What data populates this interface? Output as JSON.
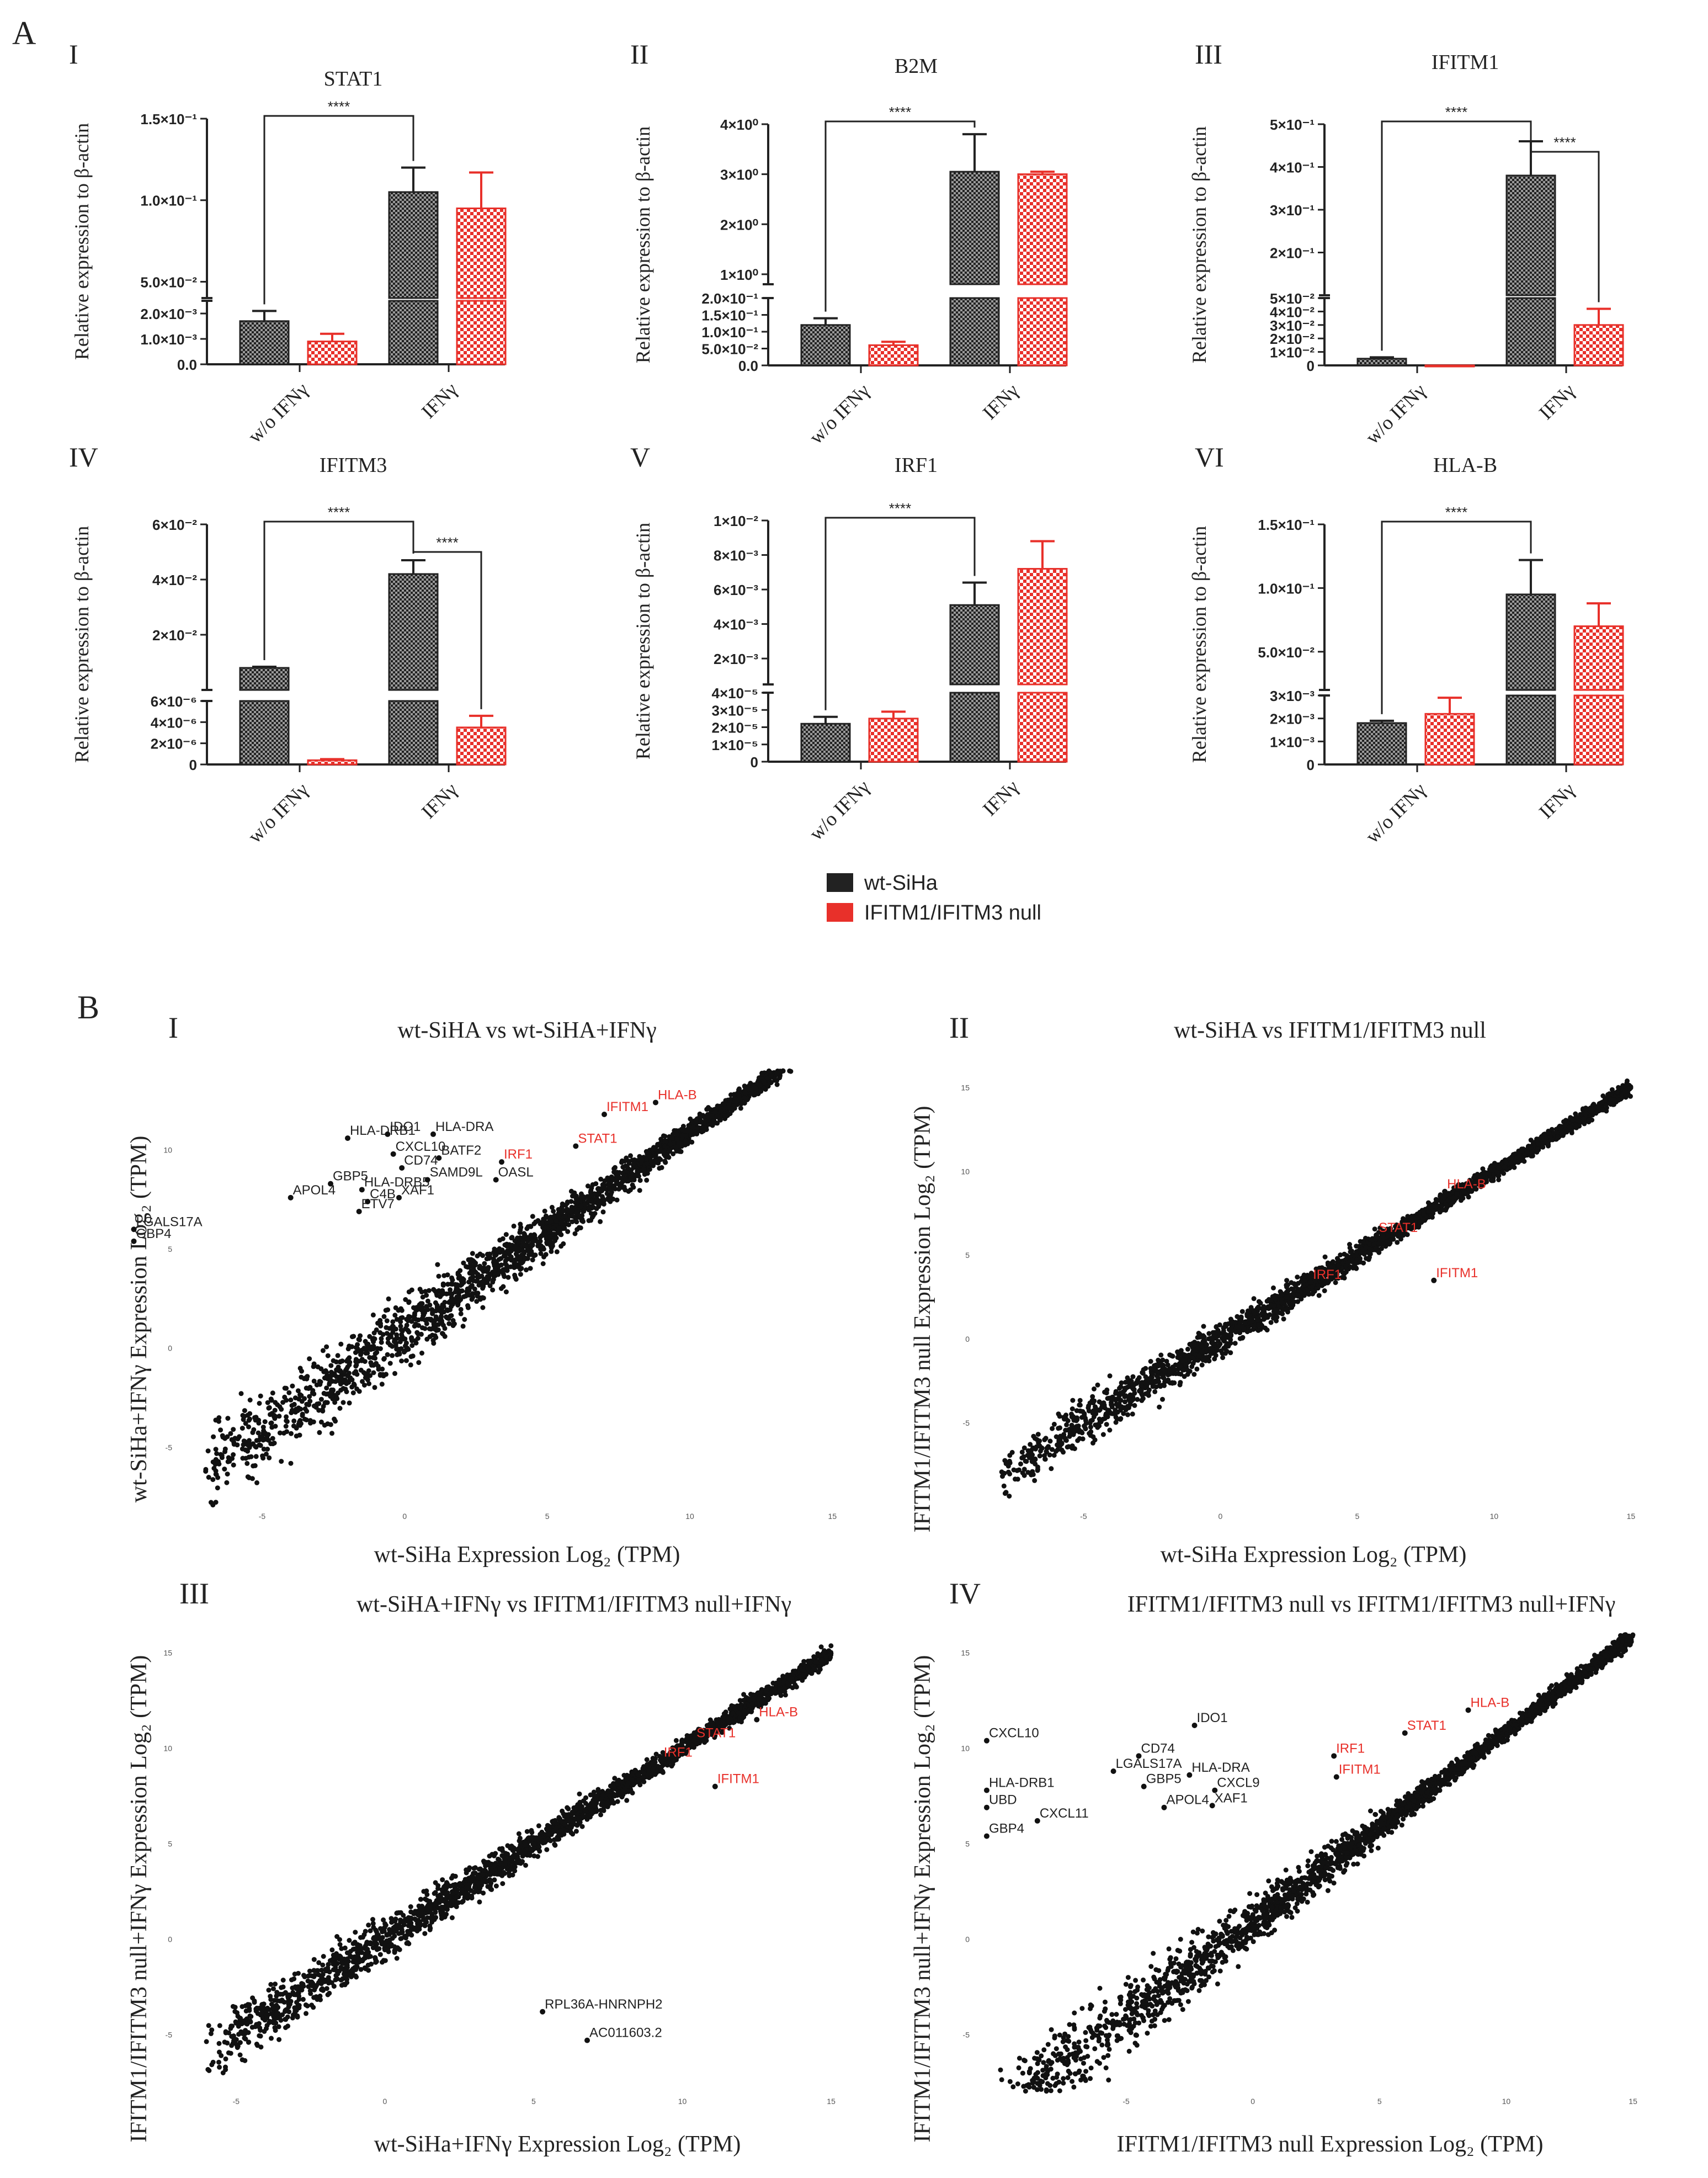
{
  "figure": {
    "panel_a_label": "A",
    "panel_b_label": "B",
    "legend": [
      {
        "label": "wt-SiHa",
        "color": "#222222"
      },
      {
        "label": "IFITM1/IFITM3 null",
        "color": "#e8302a"
      }
    ],
    "colors": {
      "wt": "#222222",
      "null": "#e8302a",
      "highlight": "#e8302a",
      "text": "#222222"
    }
  },
  "chart_data": [
    {
      "type": "bar",
      "roman": "I",
      "title": "STAT1",
      "ylabel": "Relative expression to β-actin",
      "categories": [
        "w/o IFNγ",
        "IFNγ"
      ],
      "lower": {
        "ylim": [
          0,
          0.0025
        ],
        "ticks": [
          0,
          0.001,
          0.002
        ],
        "tick_labels": [
          "0.0",
          "1.0×10⁻³",
          "2.0×10⁻³"
        ]
      },
      "upper": {
        "ylim": [
          0.04,
          0.15
        ],
        "ticks": [
          0.05,
          0.1,
          0.15
        ],
        "tick_labels": [
          "5.0×10⁻²",
          "1.0×10⁻¹",
          "1.5×10⁻¹"
        ]
      },
      "series": [
        {
          "name": "wt-SiHa",
          "values": [
            0.0017,
            0.105
          ],
          "errors": [
            0.0004,
            0.015
          ]
        },
        {
          "name": "IFITM1/IFITM3 null",
          "values": [
            0.0009,
            0.095
          ],
          "errors": [
            0.0003,
            0.022
          ]
        }
      ],
      "significance": [
        {
          "from": [
            0,
            0
          ],
          "to": [
            1,
            0
          ],
          "label": "****"
        }
      ]
    },
    {
      "type": "bar",
      "roman": "II",
      "title": "B2M",
      "ylabel": "Relative expression to β-actin",
      "categories": [
        "w/o IFNγ",
        "IFNγ"
      ],
      "lower": {
        "ylim": [
          0,
          0.2
        ],
        "ticks": [
          0,
          0.05,
          0.1,
          0.15,
          0.2
        ],
        "tick_labels": [
          "0.0",
          "5.0×10⁻²",
          "1.0×10⁻¹",
          "1.5×10⁻¹",
          "2.0×10⁻¹"
        ]
      },
      "upper": {
        "ylim": [
          0.8,
          4
        ],
        "ticks": [
          1,
          2,
          3,
          4
        ],
        "tick_labels": [
          "1×10⁰",
          "2×10⁰",
          "3×10⁰",
          "4×10⁰"
        ]
      },
      "series": [
        {
          "name": "wt-SiHa",
          "values": [
            0.12,
            3.05
          ],
          "errors": [
            0.02,
            0.75
          ]
        },
        {
          "name": "IFITM1/IFITM3 null",
          "values": [
            0.06,
            3.0
          ],
          "errors": [
            0.01,
            0.05
          ]
        }
      ],
      "significance": [
        {
          "from": [
            0,
            0
          ],
          "to": [
            1,
            0
          ],
          "label": "****"
        }
      ]
    },
    {
      "type": "bar",
      "roman": "III",
      "title": "IFITM1",
      "ylabel": "Relative expression to β-actin",
      "categories": [
        "w/o IFNγ",
        "IFNγ"
      ],
      "lower": {
        "ylim": [
          0,
          0.05
        ],
        "ticks": [
          0,
          0.01,
          0.02,
          0.03,
          0.04,
          0.05
        ],
        "tick_labels": [
          "0",
          "1×10⁻²",
          "2×10⁻²",
          "3×10⁻²",
          "4×10⁻²",
          "5×10⁻²"
        ]
      },
      "upper": {
        "ylim": [
          0.1,
          0.5
        ],
        "ticks": [
          0.2,
          0.3,
          0.4,
          0.5
        ],
        "tick_labels": [
          "2×10⁻¹",
          "3×10⁻¹",
          "4×10⁻¹",
          "5×10⁻¹"
        ]
      },
      "series": [
        {
          "name": "wt-SiHa",
          "values": [
            0.005,
            0.38
          ],
          "errors": [
            0.001,
            0.08
          ]
        },
        {
          "name": "IFITM1/IFITM3 null",
          "values": [
            0.0,
            0.03
          ],
          "errors": [
            0.0,
            0.012
          ]
        }
      ],
      "significance": [
        {
          "from": [
            0,
            0
          ],
          "to": [
            1,
            0
          ],
          "label": "****"
        },
        {
          "from": [
            1,
            0
          ],
          "to": [
            1,
            1
          ],
          "label": "****"
        }
      ]
    },
    {
      "type": "bar",
      "roman": "IV",
      "title": "IFITM3",
      "ylabel": "Relative expression to β-actin",
      "categories": [
        "w/o IFNγ",
        "IFNγ"
      ],
      "lower": {
        "ylim": [
          0,
          6e-06
        ],
        "ticks": [
          0,
          2e-06,
          4e-06,
          6e-06
        ],
        "tick_labels": [
          "0",
          "2×10⁻⁶",
          "4×10⁻⁶",
          "6×10⁻⁶"
        ]
      },
      "upper": {
        "ylim": [
          0,
          0.06
        ],
        "ticks": [
          0.02,
          0.04,
          0.06
        ],
        "tick_labels": [
          "2×10⁻²",
          "4×10⁻²",
          "6×10⁻²"
        ]
      },
      "series": [
        {
          "name": "wt-SiHa",
          "values": [
            0.008,
            0.042
          ],
          "errors": [
            0.0004,
            0.005
          ]
        },
        {
          "name": "IFITM1/IFITM3 null",
          "values": [
            4e-07,
            3.5e-06
          ],
          "errors": [
            1e-07,
            1.1e-06
          ]
        }
      ],
      "significance": [
        {
          "from": [
            0,
            0
          ],
          "to": [
            1,
            0
          ],
          "label": "****"
        },
        {
          "from": [
            1,
            0
          ],
          "to": [
            1,
            1
          ],
          "label": "****"
        }
      ]
    },
    {
      "type": "bar",
      "roman": "V",
      "title": "IRF1",
      "ylabel": "Relative expression to β-actin",
      "categories": [
        "w/o IFNγ",
        "IFNγ"
      ],
      "lower": {
        "ylim": [
          0,
          4e-05
        ],
        "ticks": [
          0,
          1e-05,
          2e-05,
          3e-05,
          4e-05
        ],
        "tick_labels": [
          "0",
          "1×10⁻⁵",
          "2×10⁻⁵",
          "3×10⁻⁵",
          "4×10⁻⁵"
        ]
      },
      "upper": {
        "ylim": [
          0.0005,
          0.01
        ],
        "ticks": [
          0.002,
          0.004,
          0.006,
          0.008,
          0.01
        ],
        "tick_labels": [
          "2×10⁻³",
          "4×10⁻³",
          "6×10⁻³",
          "8×10⁻³",
          "1×10⁻²"
        ]
      },
      "series": [
        {
          "name": "wt-SiHa",
          "values": [
            2.2e-05,
            0.0051
          ],
          "errors": [
            4e-06,
            0.0013
          ]
        },
        {
          "name": "IFITM1/IFITM3 null",
          "values": [
            2.5e-05,
            0.0072
          ],
          "errors": [
            4e-06,
            0.0016
          ]
        }
      ],
      "significance": [
        {
          "from": [
            0,
            0
          ],
          "to": [
            1,
            0
          ],
          "label": "****"
        }
      ]
    },
    {
      "type": "bar",
      "roman": "VI",
      "title": "HLA-B",
      "ylabel": "Relative expression to β-actin",
      "categories": [
        "w/o IFNγ",
        "IFNγ"
      ],
      "lower": {
        "ylim": [
          0,
          0.003
        ],
        "ticks": [
          0,
          0.001,
          0.002,
          0.003
        ],
        "tick_labels": [
          "0",
          "1×10⁻³",
          "2×10⁻³",
          "3×10⁻³"
        ]
      },
      "upper": {
        "ylim": [
          0.02,
          0.15
        ],
        "ticks": [
          0.05,
          0.1,
          0.15
        ],
        "tick_labels": [
          "5.0×10⁻²",
          "1.0×10⁻¹",
          "1.5×10⁻¹"
        ]
      },
      "series": [
        {
          "name": "wt-SiHa",
          "values": [
            0.0018,
            0.095
          ],
          "errors": [
            0.0001,
            0.027
          ]
        },
        {
          "name": "IFITM1/IFITM3 null",
          "values": [
            0.0022,
            0.07
          ],
          "errors": [
            0.0007,
            0.018
          ]
        }
      ],
      "significance": [
        {
          "from": [
            0,
            0
          ],
          "to": [
            1,
            0
          ],
          "label": "****"
        }
      ]
    },
    {
      "type": "scatter",
      "roman": "I",
      "title": "wt-SiHA vs wt-SiHA+IFNγ",
      "xlabel": "wt-SiHa Expression Log₂ (TPM)",
      "ylabel": "wt-SiHa+IFNγ Expression Log₂ (TPM)",
      "xlim": [
        -8,
        16
      ],
      "ylim": [
        -8,
        14
      ],
      "xticks": [
        -5,
        0,
        5,
        10,
        15
      ],
      "yticks": [
        -5,
        0,
        5,
        10
      ],
      "points": [
        {
          "x": -9.5,
          "y": 6.0,
          "label": "LGALS17A",
          "highlight": false
        },
        {
          "x": -9.5,
          "y": 5.4,
          "label": "GBP4",
          "highlight": false
        },
        {
          "x": -4.0,
          "y": 7.6,
          "label": "APOL4",
          "highlight": false
        },
        {
          "x": -2.6,
          "y": 8.3,
          "label": "GBP5",
          "highlight": false
        },
        {
          "x": -1.5,
          "y": 8.0,
          "label": "HLA-DRB5",
          "highlight": false
        },
        {
          "x": -1.6,
          "y": 6.9,
          "label": "ETV7",
          "highlight": false
        },
        {
          "x": -1.3,
          "y": 7.4,
          "label": "C4B",
          "highlight": false
        },
        {
          "x": -0.2,
          "y": 7.6,
          "label": "XAF1",
          "highlight": false
        },
        {
          "x": -2.0,
          "y": 10.6,
          "label": "HLA-DRB1",
          "highlight": false
        },
        {
          "x": -0.6,
          "y": 10.8,
          "label": "IDO1",
          "highlight": false
        },
        {
          "x": 1.0,
          "y": 10.8,
          "label": "HLA-DRA",
          "highlight": false
        },
        {
          "x": -0.4,
          "y": 9.8,
          "label": "CXCL10",
          "highlight": false
        },
        {
          "x": -0.1,
          "y": 9.1,
          "label": "CD74",
          "highlight": false
        },
        {
          "x": 1.2,
          "y": 9.6,
          "label": "BATF2",
          "highlight": false
        },
        {
          "x": 0.8,
          "y": 8.5,
          "label": "SAMD9L",
          "highlight": false
        },
        {
          "x": 3.2,
          "y": 8.5,
          "label": "OASL",
          "highlight": false
        },
        {
          "x": 3.4,
          "y": 9.4,
          "label": "IRF1",
          "highlight": true
        },
        {
          "x": 6.0,
          "y": 10.2,
          "label": "STAT1",
          "highlight": true
        },
        {
          "x": 7.0,
          "y": 11.8,
          "label": "IFITM1",
          "highlight": true
        },
        {
          "x": 8.8,
          "y": 12.4,
          "label": "HLA-B",
          "highlight": true
        }
      ]
    },
    {
      "type": "scatter",
      "roman": "II",
      "title": "wt-SiHA vs IFITM1/IFITM3 null",
      "xlabel": "wt-SiHa Expression Log₂ (TPM)",
      "ylabel": "IFITM1/IFITM3 null Expression Log₂ (TPM)",
      "xlim": [
        -9,
        16
      ],
      "ylim": [
        -10,
        16
      ],
      "xticks": [
        -5,
        0,
        5,
        10,
        15
      ],
      "yticks": [
        -5,
        0,
        5,
        10,
        15
      ],
      "points": [
        {
          "x": 3.3,
          "y": 3.4,
          "label": "IRF1",
          "highlight": true
        },
        {
          "x": 5.7,
          "y": 6.2,
          "label": "STAT1",
          "highlight": true
        },
        {
          "x": 7.8,
          "y": 3.5,
          "label": "IFITM1",
          "highlight": true
        },
        {
          "x": 8.2,
          "y": 8.8,
          "label": "HLA-B",
          "highlight": true
        }
      ]
    },
    {
      "type": "scatter",
      "roman": "III",
      "title": "wt-SiHA+IFNγ vs IFITM1/IFITM3 null+IFNγ",
      "xlabel": "wt-SiHa+IFNγ Expression Log₂ (TPM)",
      "ylabel": "IFITM1/IFITM3 null+IFNγ Expression Log₂ (TPM)",
      "xlim": [
        -7,
        16
      ],
      "ylim": [
        -8,
        16
      ],
      "xticks": [
        -5,
        0,
        5,
        10,
        15
      ],
      "yticks": [
        -5,
        0,
        5,
        10,
        15
      ],
      "points": [
        {
          "x": 5.3,
          "y": -3.8,
          "label": "RPL36A-HNRNPH2",
          "highlight": false
        },
        {
          "x": 6.8,
          "y": -5.3,
          "label": "AC011603.2",
          "highlight": false
        },
        {
          "x": 9.3,
          "y": 9.4,
          "label": "IRF1",
          "highlight": true
        },
        {
          "x": 10.4,
          "y": 10.4,
          "label": "STAT1",
          "highlight": true
        },
        {
          "x": 11.1,
          "y": 8.0,
          "label": "IFITM1",
          "highlight": true
        },
        {
          "x": 12.5,
          "y": 11.5,
          "label": "HLA-B",
          "highlight": true
        }
      ]
    },
    {
      "type": "scatter",
      "roman": "IV",
      "title": "IFITM1/IFITM3 null vs IFITM1/IFITM3 null+IFNγ",
      "xlabel": "IFITM1/IFITM3 null Expression Log₂ (TPM)",
      "ylabel": "IFITM1/IFITM3 null+IFNγ Expression Log₂ (TPM)",
      "xlim": [
        -11,
        16
      ],
      "ylim": [
        -8,
        16
      ],
      "xticks": [
        -5,
        0,
        5,
        10,
        15
      ],
      "yticks": [
        -5,
        0,
        5,
        10,
        15
      ],
      "points": [
        {
          "x": -10.5,
          "y": 10.4,
          "label": "CXCL10",
          "highlight": false
        },
        {
          "x": -10.5,
          "y": 7.8,
          "label": "HLA-DRB1",
          "highlight": false
        },
        {
          "x": -10.5,
          "y": 6.9,
          "label": "UBD",
          "highlight": false
        },
        {
          "x": -8.5,
          "y": 6.2,
          "label": "CXCL11",
          "highlight": false
        },
        {
          "x": -10.5,
          "y": 5.4,
          "label": "GBP4",
          "highlight": false
        },
        {
          "x": -2.3,
          "y": 11.2,
          "label": "IDO1",
          "highlight": false
        },
        {
          "x": -4.5,
          "y": 9.6,
          "label": "CD74",
          "highlight": false
        },
        {
          "x": -5.5,
          "y": 8.8,
          "label": "LGALS17A",
          "highlight": false
        },
        {
          "x": -4.3,
          "y": 8.0,
          "label": "GBP5",
          "highlight": false
        },
        {
          "x": -2.5,
          "y": 8.6,
          "label": "HLA-DRA",
          "highlight": false
        },
        {
          "x": -1.5,
          "y": 7.8,
          "label": "CXCL9",
          "highlight": false
        },
        {
          "x": -3.5,
          "y": 6.9,
          "label": "APOL4",
          "highlight": false
        },
        {
          "x": -1.6,
          "y": 7.0,
          "label": "XAF1",
          "highlight": false
        },
        {
          "x": 3.2,
          "y": 9.6,
          "label": "IRF1",
          "highlight": true
        },
        {
          "x": 6.0,
          "y": 10.8,
          "label": "STAT1",
          "highlight": true
        },
        {
          "x": 3.3,
          "y": 8.5,
          "label": "IFITM1",
          "highlight": true
        },
        {
          "x": 8.5,
          "y": 12.0,
          "label": "HLA-B",
          "highlight": true
        }
      ]
    }
  ]
}
